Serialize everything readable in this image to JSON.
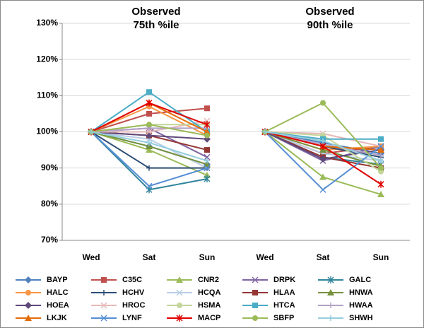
{
  "chart_data": {
    "type": "line",
    "annotations": [
      {
        "lines": [
          "Observed",
          "75th %ile"
        ]
      },
      {
        "lines": [
          "Observed",
          "90th %ile"
        ]
      }
    ],
    "categories": [
      "Wed",
      "Sat",
      "Sun",
      "Wed",
      "Sat",
      "Sun"
    ],
    "ylim": [
      70,
      130
    ],
    "yticks": [
      {
        "value": 70,
        "label": "70%"
      },
      {
        "value": 80,
        "label": "80%"
      },
      {
        "value": 90,
        "label": "90%"
      },
      {
        "value": 100,
        "label": "100%"
      },
      {
        "value": 110,
        "label": "110%"
      },
      {
        "value": 120,
        "label": "120%"
      },
      {
        "value": 130,
        "label": "130%"
      }
    ],
    "grid": true,
    "series": [
      {
        "name": "BAYP",
        "color": "#4F81BD",
        "marker": "diamond",
        "values": [
          100,
          96,
          91,
          100,
          97,
          94
        ]
      },
      {
        "name": "C35C",
        "color": "#C0504D",
        "marker": "square",
        "values": [
          100,
          105,
          106.5,
          100,
          94,
          96
        ]
      },
      {
        "name": "CNR2",
        "color": "#9BBB59",
        "marker": "triangle",
        "values": [
          100,
          95,
          88,
          100,
          87.5,
          82.7
        ]
      },
      {
        "name": "DRPK",
        "color": "#8064A2",
        "marker": "x",
        "values": [
          100,
          101,
          93,
          100,
          92,
          96
        ]
      },
      {
        "name": "GALC",
        "color": "#31859C",
        "marker": "star",
        "values": [
          100,
          84,
          87,
          100,
          93,
          91
        ]
      },
      {
        "name": "HALC",
        "color": "#F79646",
        "marker": "circle",
        "values": [
          100,
          107,
          99,
          100,
          95,
          96
        ]
      },
      {
        "name": "HCHV",
        "color": "#2C4D75",
        "marker": "plus",
        "values": [
          100,
          90,
          90,
          100,
          96,
          93
        ]
      },
      {
        "name": "HCQA",
        "color": "#B9CDE5",
        "marker": "x",
        "values": [
          100,
          98,
          90,
          100,
          94,
          92
        ]
      },
      {
        "name": "HLAA",
        "color": "#943634",
        "marker": "square",
        "values": [
          100,
          99,
          95,
          100,
          93,
          90
        ]
      },
      {
        "name": "HNWA",
        "color": "#76923C",
        "marker": "triangle",
        "values": [
          100,
          96,
          91,
          100,
          95,
          90.5
        ]
      },
      {
        "name": "HOEA",
        "color": "#5F497A",
        "marker": "diamond",
        "values": [
          100,
          99,
          98,
          100,
          92.5,
          95
        ]
      },
      {
        "name": "HROC",
        "color": "#E6B9B8",
        "marker": "x",
        "values": [
          100,
          100,
          103,
          100,
          99.5,
          96
        ]
      },
      {
        "name": "HSMA",
        "color": "#C3D69B",
        "marker": "circle",
        "values": [
          100,
          102,
          102,
          100,
          99,
          89
        ]
      },
      {
        "name": "HTCA",
        "color": "#4BACC6",
        "marker": "square",
        "values": [
          100,
          111,
          100,
          100,
          98,
          98
        ]
      },
      {
        "name": "HWAA",
        "color": "#B3A2C7",
        "marker": "plus",
        "values": [
          100,
          101,
          101,
          100,
          96.5,
          93.5
        ]
      },
      {
        "name": "LKJK",
        "color": "#E36C09",
        "marker": "triangle",
        "values": [
          100,
          108,
          100,
          100,
          96,
          95
        ]
      },
      {
        "name": "LYNF",
        "color": "#558ED5",
        "marker": "x",
        "values": [
          100,
          85,
          90,
          100,
          84,
          96
        ]
      },
      {
        "name": "MACP",
        "color": "#E00000",
        "marker": "star",
        "values": [
          100,
          108,
          102,
          100,
          96,
          85.5
        ]
      },
      {
        "name": "SBFP",
        "color": "#9BBB59",
        "marker": "circle",
        "values": [
          100,
          102,
          99,
          100,
          108,
          90
        ]
      },
      {
        "name": "SHWH",
        "color": "#93CDDD",
        "marker": "plus",
        "values": [
          100,
          97,
          92,
          100,
          97.5,
          92
        ]
      }
    ]
  }
}
